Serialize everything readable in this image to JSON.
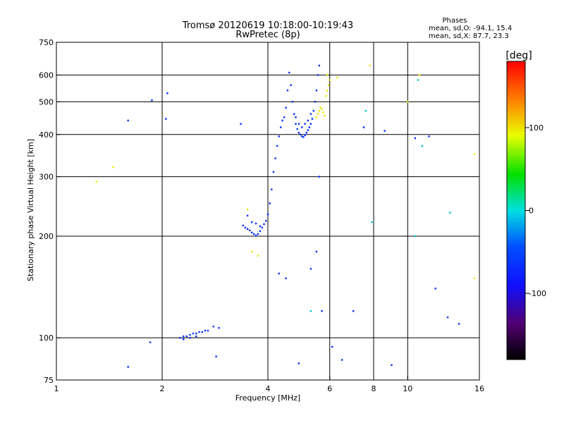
{
  "chart_data": {
    "type": "scatter",
    "title": "Tromsø 20120619 10:18:00-10:19:43",
    "subtitle": "RwPretec (8p)",
    "xlabel": "Frequency [MHz]",
    "ylabel": "Stationary phase Virtual Height [km]",
    "x_scale": "log",
    "y_scale": "log",
    "xlim": [
      1,
      16
    ],
    "ylim": [
      75,
      750
    ],
    "x_ticks": [
      1,
      2,
      4,
      6,
      8,
      10,
      16
    ],
    "x_tick_labels": [
      "1",
      "2",
      "4",
      "6",
      "8",
      "10",
      "16"
    ],
    "y_ticks": [
      75,
      100,
      200,
      300,
      400,
      500,
      600,
      750
    ],
    "y_tick_labels": [
      "75",
      "100",
      "200",
      "300",
      "400",
      "500",
      "600",
      "750"
    ],
    "grid_x": [
      2,
      4,
      6,
      8,
      10
    ],
    "grid_y": [
      100,
      200,
      300,
      400,
      500,
      600
    ],
    "phase_stats": {
      "title": "Phases",
      "line1": "mean, sd,O: -94.1, 15.4",
      "line2": "mean, sd,X:  87.7, 23.3"
    },
    "colorbar": {
      "label": "[deg]",
      "range": [
        -180,
        180
      ],
      "ticks": [
        100,
        0,
        -100
      ],
      "tick_labels": [
        "100",
        "0",
        "-100"
      ]
    },
    "series": [
      {
        "mode": "O",
        "color": "#0030ff",
        "points": [
          [
            2.25,
            100
          ],
          [
            2.3,
            101
          ],
          [
            2.35,
            101
          ],
          [
            2.4,
            102
          ],
          [
            2.45,
            103
          ],
          [
            2.5,
            103
          ],
          [
            2.55,
            104
          ],
          [
            2.6,
            104
          ],
          [
            2.65,
            105
          ],
          [
            2.7,
            105
          ],
          [
            2.3,
            99
          ],
          [
            2.4,
            100
          ],
          [
            2.5,
            101
          ],
          [
            2.8,
            108
          ],
          [
            2.9,
            107
          ],
          [
            3.4,
            215
          ],
          [
            3.45,
            212
          ],
          [
            3.5,
            210
          ],
          [
            3.55,
            208
          ],
          [
            3.6,
            205
          ],
          [
            3.65,
            203
          ],
          [
            3.7,
            201
          ],
          [
            3.75,
            203
          ],
          [
            3.8,
            207
          ],
          [
            3.85,
            212
          ],
          [
            3.9,
            217
          ],
          [
            3.95,
            222
          ],
          [
            4.0,
            232
          ],
          [
            4.05,
            250
          ],
          [
            4.1,
            275
          ],
          [
            4.15,
            310
          ],
          [
            4.2,
            340
          ],
          [
            4.25,
            370
          ],
          [
            4.3,
            395
          ],
          [
            4.35,
            420
          ],
          [
            4.4,
            440
          ],
          [
            4.45,
            450
          ],
          [
            4.5,
            480
          ],
          [
            4.55,
            540
          ],
          [
            4.6,
            610
          ],
          [
            4.65,
            560
          ],
          [
            4.7,
            500
          ],
          [
            4.75,
            460
          ],
          [
            4.8,
            430
          ],
          [
            4.85,
            415
          ],
          [
            4.9,
            405
          ],
          [
            4.95,
            400
          ],
          [
            5.0,
            395
          ],
          [
            5.05,
            393
          ],
          [
            5.1,
            398
          ],
          [
            5.15,
            405
          ],
          [
            5.2,
            412
          ],
          [
            5.25,
            420
          ],
          [
            5.3,
            430
          ],
          [
            5.35,
            445
          ],
          [
            5.4,
            470
          ],
          [
            5.45,
            500
          ],
          [
            5.5,
            540
          ],
          [
            5.55,
            600
          ],
          [
            5.6,
            640
          ],
          [
            3.5,
            230
          ],
          [
            3.6,
            220
          ],
          [
            3.7,
            218
          ],
          [
            3.8,
            214
          ],
          [
            5.0,
            420
          ],
          [
            5.1,
            430
          ],
          [
            5.2,
            440
          ],
          [
            5.3,
            460
          ],
          [
            4.9,
            430
          ],
          [
            4.8,
            450
          ],
          [
            1.6,
            82
          ],
          [
            1.85,
            97
          ],
          [
            2.85,
            88
          ],
          [
            1.6,
            440
          ],
          [
            1.87,
            505
          ],
          [
            2.05,
            445
          ],
          [
            2.07,
            530
          ],
          [
            3.35,
            430
          ],
          [
            4.3,
            155
          ],
          [
            4.5,
            150
          ],
          [
            5.3,
            160
          ],
          [
            5.5,
            180
          ],
          [
            5.7,
            120
          ],
          [
            6.1,
            94
          ],
          [
            6.5,
            86
          ],
          [
            7.0,
            120
          ],
          [
            7.5,
            420
          ],
          [
            8.6,
            410
          ],
          [
            9.0,
            83
          ],
          [
            10.5,
            390
          ],
          [
            11.5,
            395
          ],
          [
            12.0,
            140
          ],
          [
            13.0,
            115
          ],
          [
            14.0,
            110
          ],
          [
            4.9,
            84
          ],
          [
            5.6,
            300
          ]
        ]
      },
      {
        "mode": "X",
        "color": "#e8e800",
        "points": [
          [
            5.5,
            450
          ],
          [
            5.55,
            460
          ],
          [
            5.6,
            470
          ],
          [
            5.65,
            480
          ],
          [
            5.7,
            475
          ],
          [
            5.75,
            465
          ],
          [
            5.8,
            455
          ],
          [
            5.85,
            520
          ],
          [
            5.9,
            540
          ],
          [
            5.95,
            560
          ],
          [
            6.0,
            580
          ],
          [
            5.9,
            600
          ],
          [
            6.3,
            590
          ],
          [
            7.8,
            640
          ],
          [
            1.45,
            320
          ],
          [
            1.3,
            290
          ],
          [
            3.5,
            240
          ],
          [
            3.6,
            180
          ],
          [
            3.75,
            175
          ],
          [
            10.8,
            600
          ],
          [
            10.0,
            500
          ],
          [
            15.5,
            350
          ],
          [
            15.5,
            150
          ]
        ]
      },
      {
        "mode": "other",
        "color": "#00c8c8",
        "points": [
          [
            10.5,
            200
          ],
          [
            10.7,
            580
          ],
          [
            11.0,
            370
          ],
          [
            13.2,
            235
          ],
          [
            7.6,
            470
          ],
          [
            5.3,
            120
          ],
          [
            7.9,
            220
          ]
        ]
      }
    ]
  }
}
